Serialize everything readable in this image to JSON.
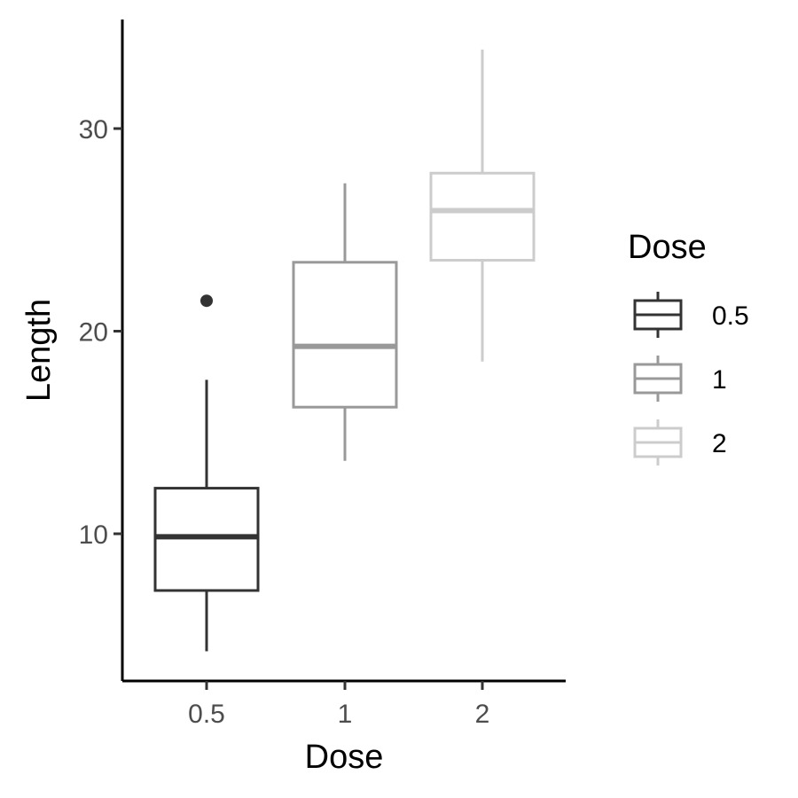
{
  "chart_data": {
    "type": "box",
    "xlabel": "Dose",
    "ylabel": "Length",
    "categories": [
      "0.5",
      "1",
      "2"
    ],
    "y_ticks": [
      10,
      20,
      30
    ],
    "ylim": [
      3,
      35
    ],
    "boxes": [
      {
        "category": "0.5",
        "min": 4.2,
        "q1": 7.2,
        "median": 9.85,
        "q3": 12.25,
        "max": 17.6,
        "outliers": [
          21.5
        ],
        "color": "#333333"
      },
      {
        "category": "1",
        "min": 13.6,
        "q1": 16.25,
        "median": 19.25,
        "q3": 23.4,
        "max": 27.3,
        "outliers": [],
        "color": "#999999"
      },
      {
        "category": "2",
        "min": 18.5,
        "q1": 23.5,
        "median": 25.95,
        "q3": 27.8,
        "max": 33.9,
        "outliers": [],
        "color": "#cccccc"
      }
    ],
    "legend": {
      "title": "Dose",
      "position": "right",
      "items": [
        {
          "label": "0.5",
          "color": "#333333"
        },
        {
          "label": "1",
          "color": "#999999"
        },
        {
          "label": "2",
          "color": "#cccccc"
        }
      ]
    },
    "grid": false
  }
}
